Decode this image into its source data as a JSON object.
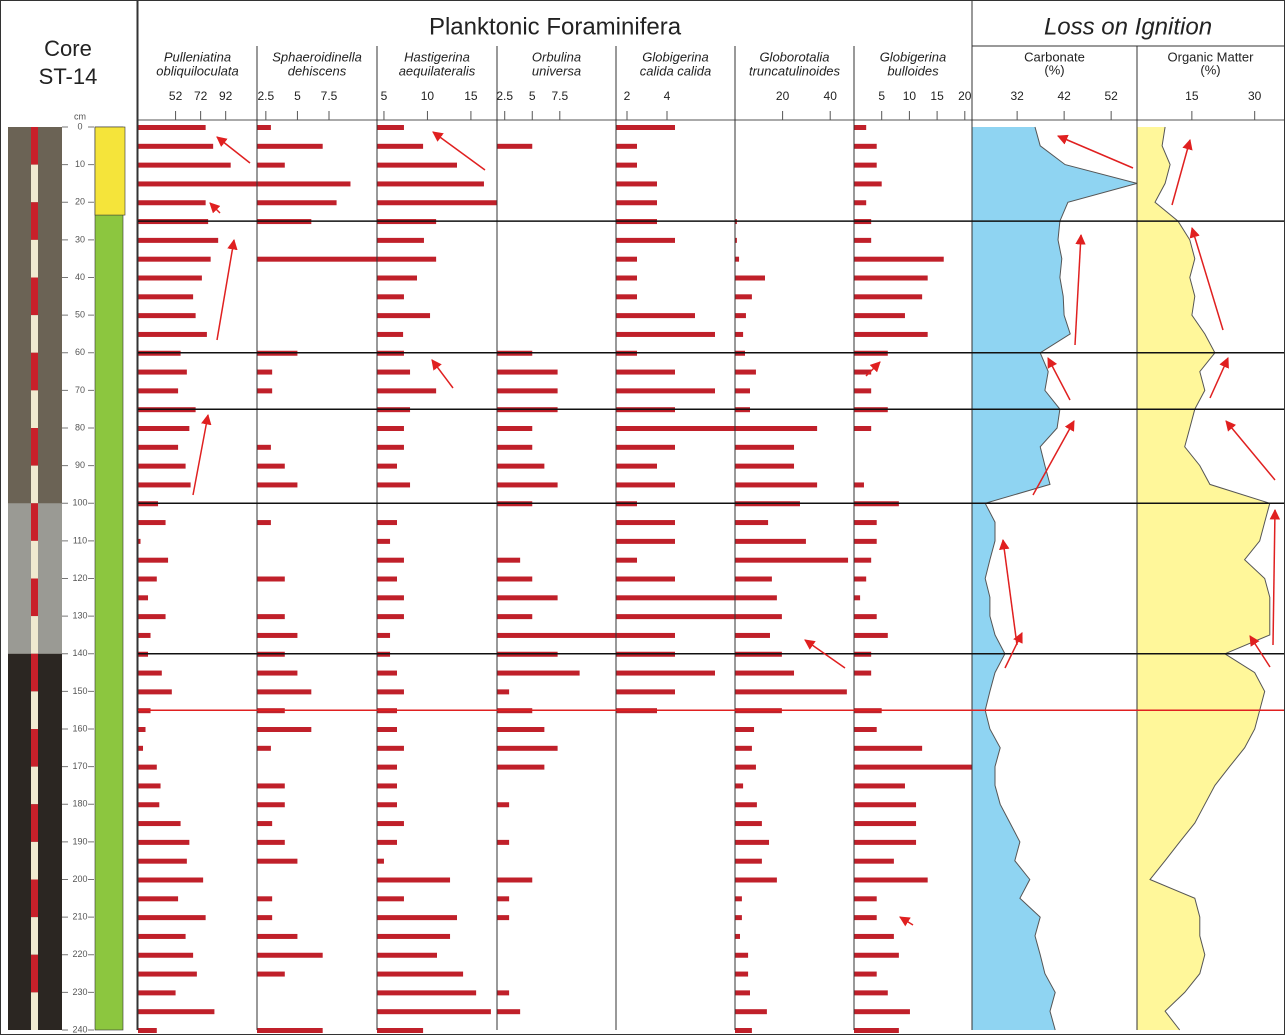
{
  "core": {
    "title": [
      "Core",
      "ST-14"
    ]
  },
  "header": {
    "foraminifera": "Planktonic Foraminifera",
    "loi": "Loss on Ignition"
  },
  "depth_axis": {
    "label": "cm",
    "ylim": [
      0,
      240
    ],
    "yticks": [
      0,
      10,
      20,
      30,
      40,
      50,
      60,
      70,
      80,
      90,
      100,
      110,
      120,
      130,
      140,
      150,
      160,
      170,
      180,
      190,
      200,
      210,
      220,
      230,
      240
    ]
  },
  "depths": [
    0,
    5,
    10,
    15,
    20,
    25,
    30,
    35,
    40,
    45,
    50,
    55,
    60,
    65,
    70,
    75,
    80,
    85,
    90,
    95,
    100,
    105,
    110,
    115,
    120,
    125,
    130,
    135,
    140,
    145,
    150,
    155,
    160,
    165,
    170,
    175,
    180,
    185,
    190,
    195,
    200,
    205,
    210,
    215,
    220,
    225,
    230,
    235,
    240
  ],
  "boundaries": [
    25,
    60,
    75,
    100,
    140
  ],
  "marker_depth": 155,
  "chart_data": [
    {
      "type": "bar",
      "title": [
        "Pulleniatina",
        "obliquiloculata"
      ],
      "xlim": [
        22,
        117
      ],
      "xticks": [
        52,
        72,
        92
      ],
      "color": "#c0202a",
      "values": [
        76,
        82,
        96,
        117,
        76,
        78,
        86,
        80,
        73,
        66,
        68,
        77,
        56,
        61,
        54,
        68,
        63,
        54,
        60,
        64,
        38,
        44,
        24,
        46,
        37,
        30,
        44,
        32,
        30,
        41,
        49,
        32,
        28,
        26,
        37,
        40,
        39,
        56,
        63,
        61,
        74,
        54,
        76,
        60,
        66,
        69,
        52,
        83,
        37
      ]
    },
    {
      "type": "bar",
      "title": [
        "Sphaeroidinella",
        "dehiscens"
      ],
      "xlim": [
        1.8,
        11.3
      ],
      "xticks": [
        2.5,
        5,
        7.5
      ],
      "color": "#c0202a",
      "values": [
        2.9,
        7.0,
        4.0,
        9.2,
        8.1,
        6.1,
        null,
        11.3,
        null,
        null,
        null,
        null,
        5.0,
        3.0,
        3.0,
        null,
        null,
        2.9,
        4.0,
        5.0,
        null,
        2.9,
        null,
        null,
        4.0,
        null,
        4.0,
        5.0,
        4.0,
        5.0,
        6.1,
        4.0,
        6.1,
        2.9,
        null,
        4.0,
        4.0,
        3.0,
        4.0,
        5.0,
        null,
        3.0,
        3.0,
        5.0,
        7.0,
        4.0,
        null,
        null,
        7.0
      ]
    },
    {
      "type": "bar",
      "title": [
        "Hastigerina",
        "aequilateralis"
      ],
      "xlim": [
        4.2,
        18
      ],
      "xticks": [
        5,
        10,
        15
      ],
      "color": "#c0202a",
      "values": [
        7.3,
        9.5,
        13.4,
        16.5,
        18,
        11.0,
        9.6,
        11.0,
        8.8,
        7.3,
        10.3,
        7.2,
        7.3,
        8.0,
        11.0,
        8.0,
        7.3,
        7.3,
        6.5,
        8.0,
        null,
        6.5,
        5.7,
        7.3,
        6.5,
        7.3,
        7.3,
        5.7,
        5.7,
        6.5,
        7.3,
        6.5,
        6.5,
        7.3,
        6.5,
        6.5,
        6.5,
        7.3,
        6.5,
        5.0,
        12.6,
        7.3,
        13.4,
        12.6,
        11.1,
        14.1,
        15.6,
        17.3,
        9.5
      ]
    },
    {
      "type": "bar",
      "title": [
        "Orbulina",
        "universa"
      ],
      "xlim": [
        1.8,
        12.6
      ],
      "xticks": [
        2.5,
        5,
        7.5
      ],
      "color": "#c0202a",
      "values": [
        null,
        5.0,
        null,
        null,
        null,
        null,
        null,
        null,
        null,
        null,
        null,
        null,
        5.0,
        7.3,
        7.3,
        7.3,
        5.0,
        5.0,
        6.1,
        7.3,
        5.0,
        null,
        null,
        3.9,
        5.0,
        7.3,
        5.0,
        12.6,
        7.3,
        9.3,
        2.9,
        5.0,
        6.1,
        7.3,
        6.1,
        null,
        2.9,
        null,
        2.9,
        null,
        5.0,
        2.9,
        2.9,
        null,
        null,
        null,
        2.9,
        3.9,
        null
      ]
    },
    {
      "type": "bar",
      "title": [
        "Globigerina",
        "calida calida"
      ],
      "xlim": [
        1.45,
        7.4
      ],
      "xticks": [
        2,
        4
      ],
      "color": "#c0202a",
      "values": [
        4.4,
        2.5,
        2.5,
        3.5,
        3.5,
        3.5,
        4.4,
        2.5,
        2.5,
        2.5,
        5.4,
        6.4,
        2.5,
        4.4,
        6.4,
        4.4,
        7.4,
        4.4,
        3.5,
        4.4,
        2.5,
        4.4,
        4.4,
        2.5,
        4.4,
        7.4,
        7.4,
        4.4,
        4.4,
        6.4,
        4.4,
        3.5,
        null,
        null,
        null,
        null,
        null,
        null,
        null,
        null,
        null,
        null,
        null,
        null,
        null,
        null,
        null,
        null,
        null
      ]
    },
    {
      "type": "bar",
      "title": [
        "Globorotalia",
        "truncatulinoides"
      ],
      "xlim": [
        0,
        50
      ],
      "xticks": [
        20,
        40
      ],
      "color": "#c0202a",
      "values": [
        null,
        null,
        null,
        null,
        null,
        0.8,
        0.8,
        1.7,
        12.6,
        7.1,
        4.6,
        3.4,
        4.2,
        8.8,
        6.3,
        6.3,
        34.5,
        24.8,
        24.8,
        34.5,
        27.3,
        13.9,
        29.8,
        47.5,
        15.5,
        17.6,
        19.7,
        14.7,
        19.7,
        24.8,
        47,
        19.7,
        8.0,
        7.1,
        8.8,
        3.4,
        9.2,
        11.3,
        14.3,
        11.3,
        17.6,
        2.9,
        2.9,
        2.1,
        5.5,
        5.5,
        6.3,
        13.4,
        7.1
      ]
    },
    {
      "type": "bar",
      "title": [
        "Globigerina",
        "bulloides"
      ],
      "xlim": [
        0,
        21.3
      ],
      "xticks": [
        5,
        10,
        15,
        20
      ],
      "color": "#c0202a",
      "values": [
        2.2,
        4.1,
        4.1,
        5.0,
        2.2,
        3.1,
        3.1,
        16.2,
        13.3,
        12.3,
        9.2,
        13.3,
        6.1,
        3.1,
        3.1,
        6.1,
        3.1,
        null,
        null,
        1.8,
        8.1,
        4.1,
        4.1,
        3.1,
        2.2,
        1.1,
        4.1,
        6.1,
        3.1,
        3.1,
        null,
        5.0,
        4.1,
        12.3,
        21.3,
        9.2,
        11.2,
        11.2,
        11.2,
        7.2,
        13.3,
        4.1,
        4.1,
        7.2,
        8.1,
        4.1,
        6.1,
        10.1,
        8.1
      ]
    },
    {
      "type": "area",
      "title": "Carbonate",
      "subtitle": "(%)",
      "xlim": [
        22.4,
        57.5
      ],
      "xticks": [
        32,
        42,
        52
      ],
      "color": "#8fd4f2",
      "values": [
        35.8,
        36.9,
        42.2,
        57.5,
        42.8,
        41.1,
        40.7,
        41.5,
        41.1,
        41.8,
        42.0,
        43.3,
        36.9,
        38.6,
        37.9,
        41.1,
        40.5,
        36.9,
        37.9,
        39.0,
        25.2,
        27.3,
        27.3,
        26.2,
        25.2,
        26.2,
        26.2,
        27.3,
        29.4,
        27.3,
        26.2,
        25.2,
        26.2,
        28.4,
        27.3,
        27.3,
        28.4,
        30.5,
        32.6,
        31.5,
        34.7,
        32.6,
        36.9,
        35.8,
        36.9,
        37.9,
        40.1,
        39.0,
        40.1
      ]
    },
    {
      "type": "area",
      "title": "Organic Matter",
      "subtitle": "(%)",
      "xlim": [
        1.9,
        37
      ],
      "xticks": [
        15,
        30
      ],
      "color": "#fff79a",
      "values": [
        8.6,
        7.9,
        9.8,
        8.6,
        6.2,
        11.7,
        14.5,
        15.7,
        14.5,
        15.7,
        15.0,
        18.1,
        20.5,
        16.9,
        18.1,
        15.7,
        14.5,
        13.3,
        16.9,
        19.3,
        33.6,
        32.4,
        31.2,
        27.6,
        32.4,
        33.6,
        33.6,
        33.6,
        22.9,
        30.0,
        32.4,
        31.2,
        30.0,
        27.6,
        24.0,
        20.5,
        18.1,
        15.7,
        12.1,
        8.6,
        5.0,
        15.7,
        16.9,
        16.9,
        18.1,
        16.9,
        13.3,
        8.6,
        12.1
      ]
    }
  ]
}
